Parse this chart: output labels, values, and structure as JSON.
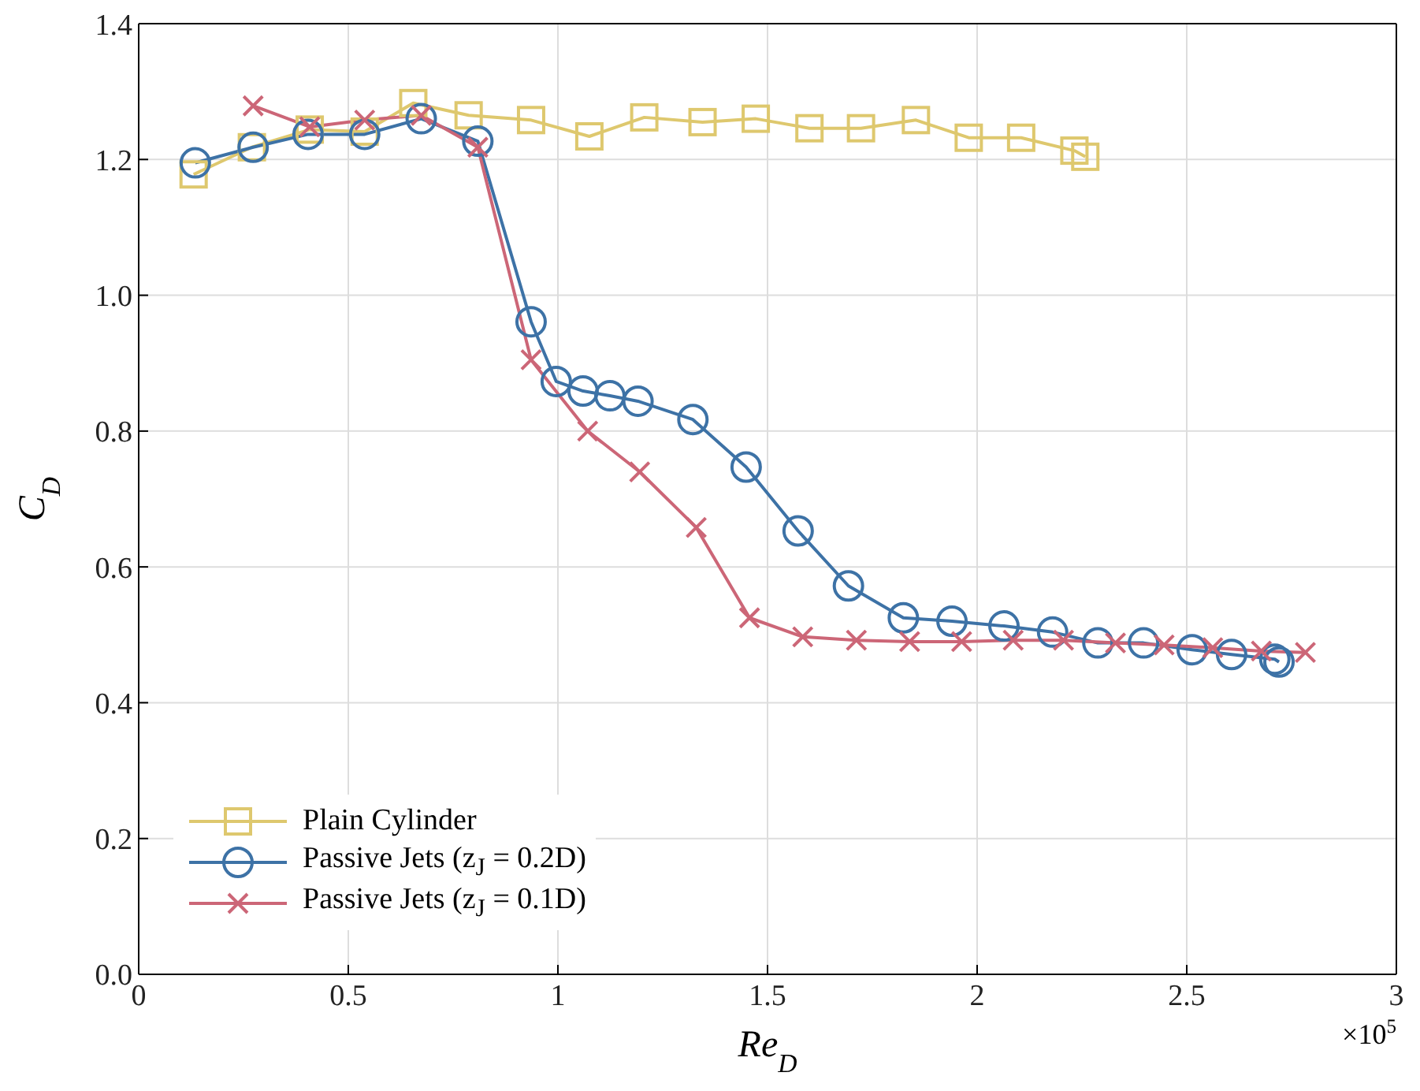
{
  "chart_data": {
    "type": "line",
    "xlabel": "Re$_{D}$",
    "ylabel": "C$_{D}$",
    "annotations": [
      "×10$^{5}$"
    ],
    "xlim": [
      0,
      3
    ],
    "xticks": [
      0,
      0.5,
      1,
      1.5,
      2,
      2.5,
      3
    ],
    "ylim": [
      0,
      1.4
    ],
    "yticks": [
      {
        "value": 0,
        "label": "0.0"
      },
      0.2,
      0.4,
      0.6,
      0.8,
      {
        "value": 1,
        "label": "1.0"
      },
      1.2,
      1.4
    ],
    "grid": true,
    "legend": "bottom left",
    "line_style": "solid",
    "series": [
      {
        "name": "Plain Cylinder",
        "color": "#dec86e",
        "marker": "square",
        "x": [
          0.131,
          0.27,
          0.408,
          0.539,
          0.655,
          0.787,
          0.936,
          1.075,
          1.206,
          1.345,
          1.472,
          1.6,
          1.723,
          1.854,
          1.98,
          2.105,
          2.232,
          2.258
        ],
        "values": [
          1.178,
          1.218,
          1.244,
          1.241,
          1.283,
          1.265,
          1.258,
          1.234,
          1.262,
          1.255,
          1.26,
          1.246,
          1.246,
          1.258,
          1.232,
          1.232,
          1.213,
          1.204
        ]
      },
      {
        "name": "Passive Jets (z$_{J}$ = 0.2D)",
        "color": "#3d72a6",
        "marker": "circle",
        "x": [
          0.135,
          0.273,
          0.404,
          0.539,
          0.674,
          0.809,
          0.936,
          0.996,
          1.06,
          1.124,
          1.191,
          1.322,
          1.449,
          1.573,
          1.693,
          1.824,
          1.94,
          2.064,
          2.18,
          2.288,
          2.397,
          2.513,
          2.607,
          2.71,
          2.72
        ],
        "values": [
          1.195,
          1.218,
          1.237,
          1.237,
          1.26,
          1.227,
          0.961,
          0.873,
          0.859,
          0.852,
          0.844,
          0.817,
          0.747,
          0.653,
          0.572,
          0.525,
          0.52,
          0.513,
          0.504,
          0.488,
          0.488,
          0.478,
          0.471,
          0.464,
          0.46
        ]
      },
      {
        "name": "Passive Jets (z$_{J}$ = 0.1D)",
        "color": "#cc6677",
        "marker": "cross",
        "x": [
          0.273,
          0.408,
          0.539,
          0.674,
          0.809,
          0.936,
          1.071,
          1.195,
          1.33,
          1.457,
          1.584,
          1.712,
          1.839,
          1.963,
          2.086,
          2.206,
          2.33,
          2.446,
          2.562,
          2.678,
          2.783
        ],
        "values": [
          1.279,
          1.248,
          1.258,
          1.265,
          1.218,
          0.905,
          0.8,
          0.74,
          0.658,
          0.525,
          0.497,
          0.492,
          0.49,
          0.49,
          0.492,
          0.492,
          0.488,
          0.485,
          0.481,
          0.476,
          0.474
        ]
      }
    ]
  }
}
